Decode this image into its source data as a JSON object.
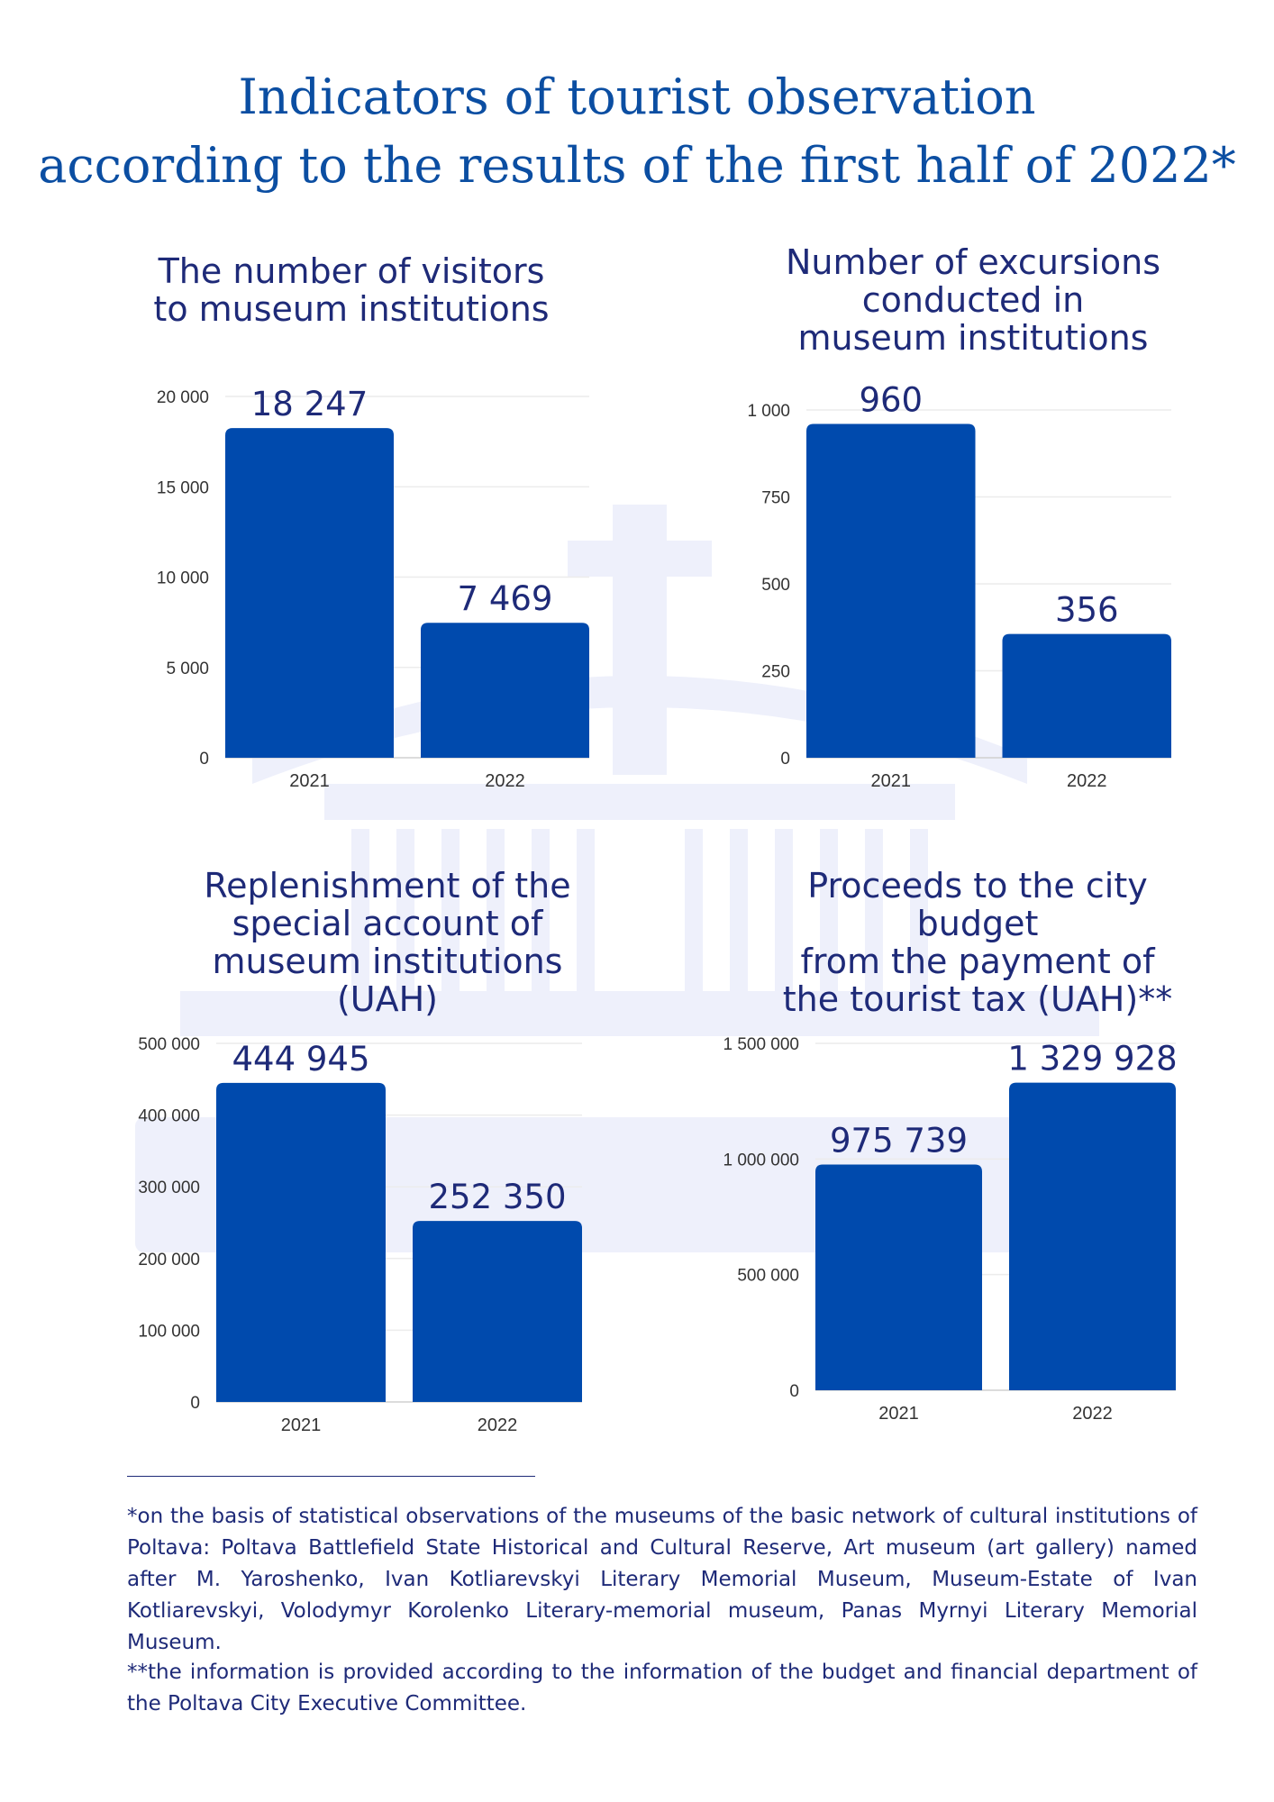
{
  "title": {
    "line1": "Indicators of tourist observation",
    "line2": "according to the results of the first half of 2022*"
  },
  "colors": {
    "bar": "#004aad",
    "title": "#0b4ea2",
    "heading": "#1e2a78",
    "watermark": "#eef0fb"
  },
  "charts": [
    {
      "title_lines": [
        "The number of visitors",
        "to museum institutions"
      ],
      "ticks": [
        "0",
        "5 000",
        "10 000",
        "15 000",
        "20 000"
      ],
      "data_labels": [
        "18 247",
        "7 469"
      ]
    },
    {
      "title_lines": [
        "Number of excursions",
        "conducted in",
        "museum institutions"
      ],
      "ticks": [
        "0",
        "250",
        "500",
        "750",
        "1 000"
      ],
      "data_labels": [
        "960",
        "356"
      ]
    },
    {
      "title_lines": [
        "Replenishment of the",
        "special account of",
        "museum institutions",
        "(UAH)"
      ],
      "ticks": [
        "0",
        "100 000",
        "200 000",
        "300 000",
        "400 000",
        "500 000"
      ],
      "data_labels": [
        "444 945",
        "252 350"
      ]
    },
    {
      "title_lines": [
        "Proceeds to the city",
        "budget",
        "from the payment of",
        "the tourist tax (UAH)**"
      ],
      "ticks": [
        "0",
        "500 000",
        "1 000 000",
        "1 500 000"
      ],
      "data_labels": [
        "975 739",
        "1 329 928"
      ]
    }
  ],
  "chart_data": [
    {
      "type": "bar",
      "title": "The number of visitors to museum institutions",
      "categories": [
        "2021",
        "2022"
      ],
      "values": [
        18247,
        7469
      ],
      "ylim": [
        0,
        20000
      ],
      "yticks": [
        0,
        5000,
        10000,
        15000,
        20000
      ],
      "grid": true
    },
    {
      "type": "bar",
      "title": "Number of excursions conducted in museum institutions",
      "categories": [
        "2021",
        "2022"
      ],
      "values": [
        960,
        356
      ],
      "ylim": [
        0,
        1000
      ],
      "yticks": [
        0,
        250,
        500,
        750,
        1000
      ],
      "grid": true
    },
    {
      "type": "bar",
      "title": "Replenishment of the special account of museum institutions (UAH)",
      "categories": [
        "2021",
        "2022"
      ],
      "values": [
        444945,
        252350
      ],
      "ylim": [
        0,
        500000
      ],
      "yticks": [
        0,
        100000,
        200000,
        300000,
        400000,
        500000
      ],
      "grid": true
    },
    {
      "type": "bar",
      "title": "Proceeds to the city budget from the payment of the tourist tax (UAH)**",
      "categories": [
        "2021",
        "2022"
      ],
      "values": [
        975739,
        1329928
      ],
      "ylim": [
        0,
        1500000
      ],
      "yticks": [
        0,
        500000,
        1000000,
        1500000
      ],
      "grid": true
    }
  ],
  "footnotes": {
    "note1": "*on the basis of statistical observations of the museums of the basic network of cultural institutions of Poltava:  Poltava Battlefield State Historical and Cultural Reserve, Art museum (art gallery) named after M. Yaroshenko, Ivan Kotliarevskyi Literary Memorial Museum, Museum-Estate of Ivan Kotliarevskyi, Volodymyr Korolenko Literary-memorial museum, Panas Myrnyi Literary Memorial Museum.",
    "note2": "**the information is provided according to the information of the budget and financial department of the Poltava City Executive Committee."
  }
}
